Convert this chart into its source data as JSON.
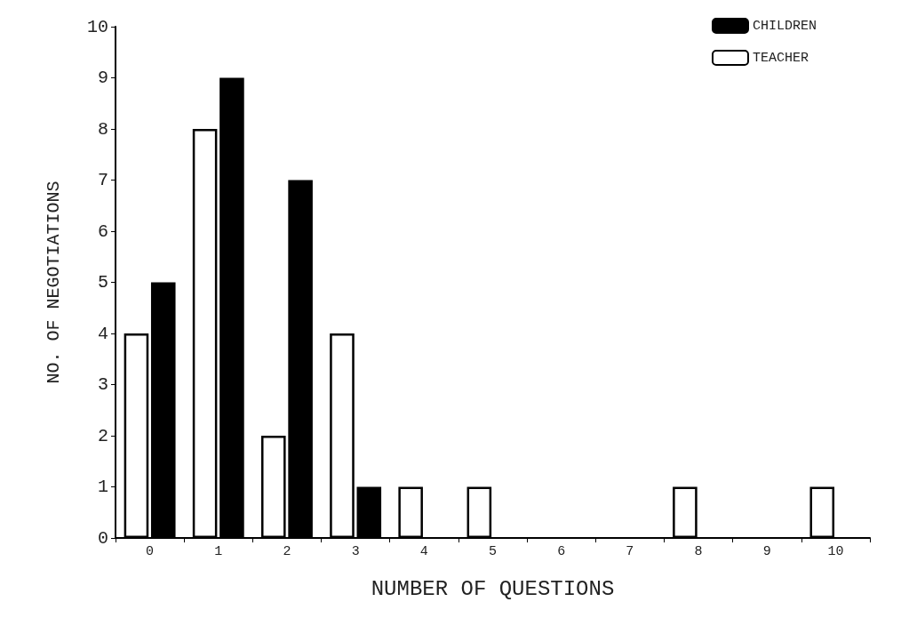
{
  "chart_data": {
    "type": "bar",
    "xlabel": "NUMBER OF QUESTIONS",
    "ylabel": "NO. OF NEGOTIATIONS",
    "categories": [
      "0",
      "1",
      "2",
      "3",
      "4",
      "5",
      "6",
      "7",
      "8",
      "9",
      "10"
    ],
    "series": [
      {
        "name": "TEACHER",
        "color": "#ffffff",
        "values": [
          4,
          8,
          2,
          4,
          1,
          1,
          0,
          0,
          1,
          0,
          1
        ]
      },
      {
        "name": "CHILDREN",
        "color": "#000000",
        "values": [
          5,
          9,
          7,
          1,
          0,
          0,
          0,
          0,
          0,
          0,
          0
        ]
      }
    ],
    "ylim": [
      0,
      10
    ],
    "yticks": [
      0,
      1,
      2,
      3,
      4,
      5,
      6,
      7,
      8,
      9,
      10
    ],
    "grid": false,
    "legend": "top right"
  }
}
